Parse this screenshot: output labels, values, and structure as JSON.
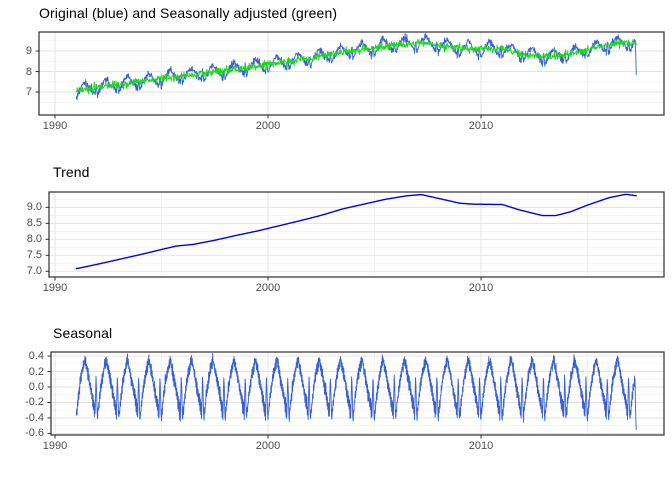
{
  "figure": {
    "type": "time-series-seasonal-decomposition",
    "background": "#FFFFFF"
  },
  "theme": {
    "panel_border": "#2D2D2D",
    "grid_major": "#E3E3E3",
    "grid_minor": "#F0F0F0",
    "tick_mark": "#333333",
    "axis_text": "#4D4D4D",
    "title_text": "#000000",
    "series_blue": "#3A5FD1",
    "series_green": "#1FD61F",
    "trend_blue": "#0000EE"
  },
  "chart_data": [
    {
      "id": "original-vs-adjusted",
      "type": "line",
      "title": "Original (blue) and Seasonally adjusted (green)",
      "x_ticks": {
        "labels": [
          "1990",
          "2000",
          "2010"
        ],
        "values": [
          1990,
          2000,
          2010
        ]
      },
      "x_minor": [
        1995,
        2005,
        2015
      ],
      "y_ticks": {
        "labels": [
          "9",
          "8",
          "7"
        ],
        "values": [
          9,
          8,
          7
        ]
      },
      "y_minor": [
        6.5,
        7.5,
        8.5,
        9.5
      ],
      "x_data_range": [
        1991.0,
        2017.3
      ],
      "points_per_year": 52,
      "y_approx_range": [
        6.4,
        9.8
      ],
      "grid": true,
      "legend": "in-title",
      "series": [
        {
          "name": "Original",
          "color": "#3A5FD1",
          "composition": "trend + seasonal + noise",
          "noise_sd": 0.07,
          "last_value": 7.85
        },
        {
          "name": "Seasonally adjusted",
          "color": "#1FD61F",
          "composition": "trend + noise",
          "noise_sd": 0.09
        }
      ]
    },
    {
      "id": "trend",
      "type": "line",
      "title": "Trend",
      "x_ticks": {
        "labels": [
          "1990",
          "2000",
          "2010"
        ],
        "values": [
          1990,
          2000,
          2010
        ]
      },
      "x_minor": [
        1995,
        2005,
        2015
      ],
      "y_ticks": {
        "labels": [
          "9.0",
          "8.5",
          "8.0",
          "7.5",
          "7.0"
        ],
        "values": [
          9.0,
          8.5,
          8.0,
          7.5,
          7.0
        ]
      },
      "y_minor": [
        7.25,
        7.75,
        8.25,
        8.75,
        9.25
      ],
      "grid": true,
      "series": [
        {
          "name": "Trend",
          "color": "#0000EE"
        }
      ],
      "knots": {
        "x": [
          1991,
          1992,
          1993,
          1994,
          1995,
          1995.7,
          1996.5,
          1997.5,
          1998.5,
          1999.5,
          2000.5,
          2001.5,
          2002.5,
          2003.5,
          2004.5,
          2005.5,
          2006.5,
          2007.2,
          2008,
          2009,
          2009.6,
          2011,
          2011.8,
          2012.9,
          2013.5,
          2014.2,
          2015,
          2016,
          2016.8,
          2017.3
        ],
        "y": [
          7.08,
          7.22,
          7.37,
          7.52,
          7.68,
          7.79,
          7.84,
          7.97,
          8.12,
          8.26,
          8.42,
          8.58,
          8.75,
          8.95,
          9.1,
          9.25,
          9.36,
          9.4,
          9.28,
          9.13,
          9.1,
          9.09,
          8.92,
          8.74,
          8.74,
          8.86,
          9.07,
          9.3,
          9.41,
          9.36
        ]
      }
    },
    {
      "id": "seasonal",
      "type": "line",
      "title": "Seasonal",
      "x_ticks": {
        "labels": [
          "1990",
          "2000",
          "2010"
        ],
        "values": [
          1990,
          2000,
          2010
        ]
      },
      "x_minor": [
        1995,
        2005,
        2015
      ],
      "y_ticks": {
        "labels": [
          "0.4",
          "0.2",
          "0.0",
          "-0.2",
          "-0.4",
          "-0.6"
        ],
        "values": [
          0.4,
          0.2,
          0.0,
          -0.2,
          -0.4,
          -0.6
        ]
      },
      "y_minor": [
        0.3,
        0.1,
        -0.1,
        -0.3,
        -0.5
      ],
      "grid": true,
      "series": [
        {
          "name": "Seasonal",
          "color": "#3A5FD1"
        }
      ],
      "period": "annual, 52 samples per year",
      "profile_weekly": [
        -0.42,
        -0.28,
        -0.34,
        -0.18,
        -0.24,
        -0.08,
        -0.15,
        0.02,
        -0.06,
        0.1,
        0.02,
        0.16,
        0.08,
        0.22,
        0.13,
        0.27,
        0.18,
        0.32,
        0.23,
        0.37,
        0.27,
        0.39,
        0.3,
        0.36,
        0.24,
        0.31,
        0.18,
        0.27,
        0.12,
        0.21,
        0.06,
        0.15,
        0.01,
        0.1,
        -0.05,
        0.05,
        -0.11,
        -0.01,
        -0.17,
        -0.07,
        -0.24,
        -0.12,
        -0.3,
        -0.16,
        -0.37,
        -0.22,
        -0.4,
        -0.1,
        0.12,
        0.03,
        -0.18,
        -0.38
      ],
      "jitter_sd": 0.02,
      "end_values": [
        -0.2,
        -0.4,
        -0.55
      ]
    }
  ]
}
